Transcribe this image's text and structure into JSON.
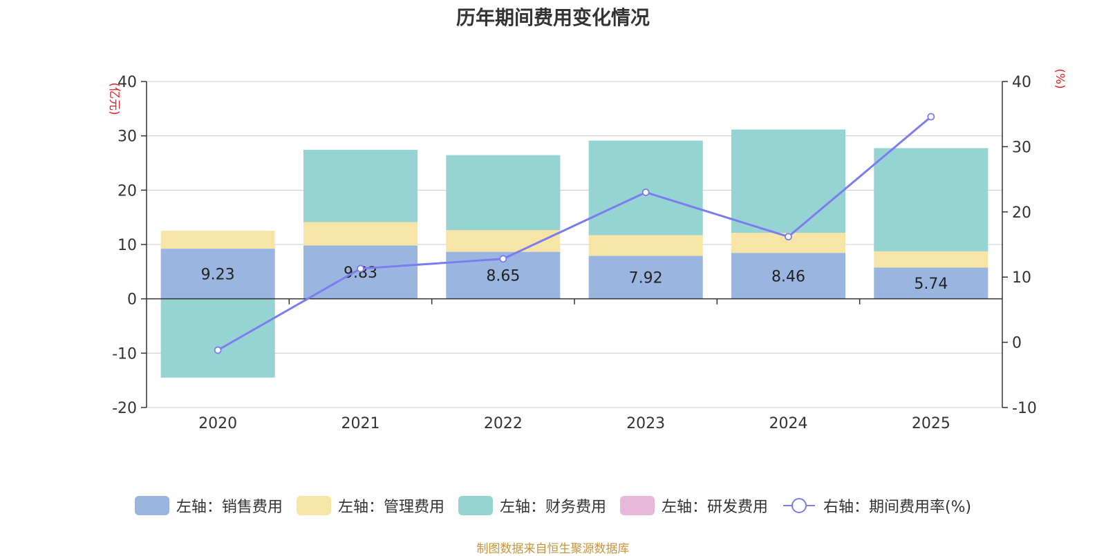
{
  "title": "历年期间费用变化情况",
  "source": "制图数据来自恒生聚源数据库",
  "legend": [
    {
      "label": "左轴：销售费用",
      "color": "#9ab6e0",
      "kind": "bar"
    },
    {
      "label": "左轴：管理费用",
      "color": "#f6e5a6",
      "kind": "bar"
    },
    {
      "label": "左轴：财务费用",
      "color": "#96d3d3",
      "kind": "bar"
    },
    {
      "label": "左轴：研发费用",
      "color": "#e8b8d8",
      "kind": "bar"
    },
    {
      "label": "右轴：期间费用率(%)",
      "color": "#7b7cf0",
      "kind": "line"
    }
  ],
  "chart_data": {
    "type": "bar",
    "title": "历年期间费用变化情况",
    "categories": [
      "2020",
      "2021",
      "2022",
      "2023",
      "2024",
      "2025"
    ],
    "series": [
      {
        "name": "左轴：销售费用",
        "axis": "left",
        "type": "bar",
        "color": "#9ab6e0",
        "values": [
          9.23,
          9.83,
          8.65,
          7.92,
          8.46,
          5.74
        ],
        "labels": [
          "9.23",
          "9.83",
          "8.65",
          "7.92",
          "8.46",
          "5.74"
        ]
      },
      {
        "name": "左轴：管理费用",
        "axis": "left",
        "type": "bar",
        "color": "#f6e5a6",
        "values": [
          3.3,
          4.3,
          4.0,
          3.8,
          3.7,
          3.0
        ]
      },
      {
        "name": "左轴：财务费用",
        "axis": "left",
        "type": "bar",
        "color": "#96d3d3",
        "values": [
          -14.5,
          13.3,
          13.8,
          17.4,
          19.0,
          19.0
        ]
      },
      {
        "name": "左轴：研发费用",
        "axis": "left",
        "type": "bar",
        "color": "#e8b8d8",
        "values": [
          0,
          0,
          0,
          0,
          0,
          0
        ]
      },
      {
        "name": "右轴：期间费用率(%)",
        "axis": "right",
        "type": "line",
        "color": "#7b7cf0",
        "values": [
          -1.2,
          11.3,
          12.8,
          23.0,
          16.2,
          34.6
        ]
      }
    ],
    "left_axis": {
      "label": "(亿元)",
      "ylim": [
        -20,
        40
      ],
      "ticks": [
        -20,
        -10,
        0,
        10,
        20,
        30,
        40
      ],
      "tick_labels": [
        "-20",
        "-10",
        "0",
        "10",
        "20",
        "30",
        "40"
      ]
    },
    "right_axis": {
      "label": "(%)",
      "ylim": [
        -10,
        40
      ],
      "ticks": [
        -10,
        0,
        10,
        20,
        30,
        40
      ],
      "tick_labels": [
        "-10",
        "0",
        "10",
        "20",
        "30",
        "40"
      ]
    },
    "grid": true,
    "legend_position": "bottom"
  }
}
